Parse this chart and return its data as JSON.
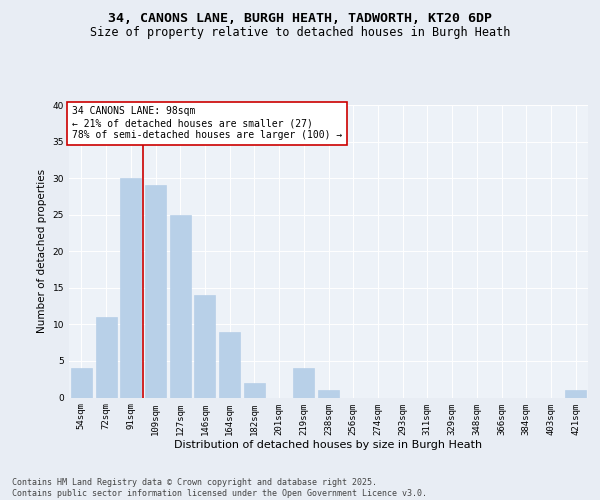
{
  "title1": "34, CANONS LANE, BURGH HEATH, TADWORTH, KT20 6DP",
  "title2": "Size of property relative to detached houses in Burgh Heath",
  "xlabel": "Distribution of detached houses by size in Burgh Heath",
  "ylabel": "Number of detached properties",
  "categories": [
    "54sqm",
    "72sqm",
    "91sqm",
    "109sqm",
    "127sqm",
    "146sqm",
    "164sqm",
    "182sqm",
    "201sqm",
    "219sqm",
    "238sqm",
    "256sqm",
    "274sqm",
    "293sqm",
    "311sqm",
    "329sqm",
    "348sqm",
    "366sqm",
    "384sqm",
    "403sqm",
    "421sqm"
  ],
  "values": [
    4,
    11,
    30,
    29,
    25,
    14,
    9,
    2,
    0,
    4,
    1,
    0,
    0,
    0,
    0,
    0,
    0,
    0,
    0,
    0,
    1
  ],
  "bar_color": "#b8d0e8",
  "bar_edgecolor": "#b8d0e8",
  "vline_x_index": 2,
  "vline_color": "#cc0000",
  "annotation_text": "34 CANONS LANE: 98sqm\n← 21% of detached houses are smaller (27)\n78% of semi-detached houses are larger (100) →",
  "annotation_box_facecolor": "#ffffff",
  "annotation_box_edgecolor": "#cc0000",
  "ylim": [
    0,
    40
  ],
  "yticks": [
    0,
    5,
    10,
    15,
    20,
    25,
    30,
    35,
    40
  ],
  "bg_color": "#e8edf4",
  "plot_bg_color": "#edf2f8",
  "footer": "Contains HM Land Registry data © Crown copyright and database right 2025.\nContains public sector information licensed under the Open Government Licence v3.0.",
  "title_fontsize": 9.5,
  "subtitle_fontsize": 8.5,
  "tick_fontsize": 6.5,
  "ylabel_fontsize": 7.5,
  "xlabel_fontsize": 8,
  "annotation_fontsize": 7,
  "footer_fontsize": 6
}
